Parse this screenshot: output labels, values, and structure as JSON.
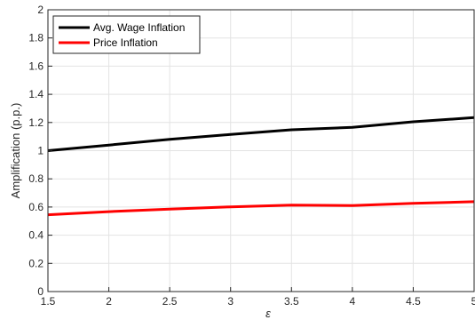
{
  "chart_data": {
    "type": "line",
    "x": [
      1.5,
      2,
      2.5,
      3,
      3.5,
      4,
      4.5,
      5
    ],
    "series": [
      {
        "name": "Avg. Wage Inflation",
        "color": "#000000",
        "values": [
          1.0,
          1.04,
          1.08,
          1.115,
          1.148,
          1.165,
          1.205,
          1.235
        ]
      },
      {
        "name": "Price Inflation",
        "color": "#ff0000",
        "values": [
          0.545,
          0.567,
          0.585,
          0.601,
          0.614,
          0.61,
          0.626,
          0.638
        ]
      }
    ],
    "xlabel": "ε",
    "ylabel": "Amplification (p.p.)",
    "xlim": [
      1.5,
      5
    ],
    "ylim": [
      0,
      2
    ],
    "xticks": [
      1.5,
      2,
      2.5,
      3,
      3.5,
      4,
      4.5,
      5
    ],
    "xtick_labels": [
      "1.5",
      "2",
      "2.5",
      "3",
      "3.5",
      "4",
      "4.5",
      "5"
    ],
    "yticks": [
      0,
      0.2,
      0.4,
      0.6,
      0.8,
      1,
      1.2,
      1.4,
      1.6,
      1.8,
      2
    ],
    "ytick_labels": [
      "0",
      "0.2",
      "0.4",
      "0.6",
      "0.8",
      "1",
      "1.2",
      "1.4",
      "1.6",
      "1.8",
      "2"
    ],
    "grid": true,
    "legend_position": "top-left"
  }
}
